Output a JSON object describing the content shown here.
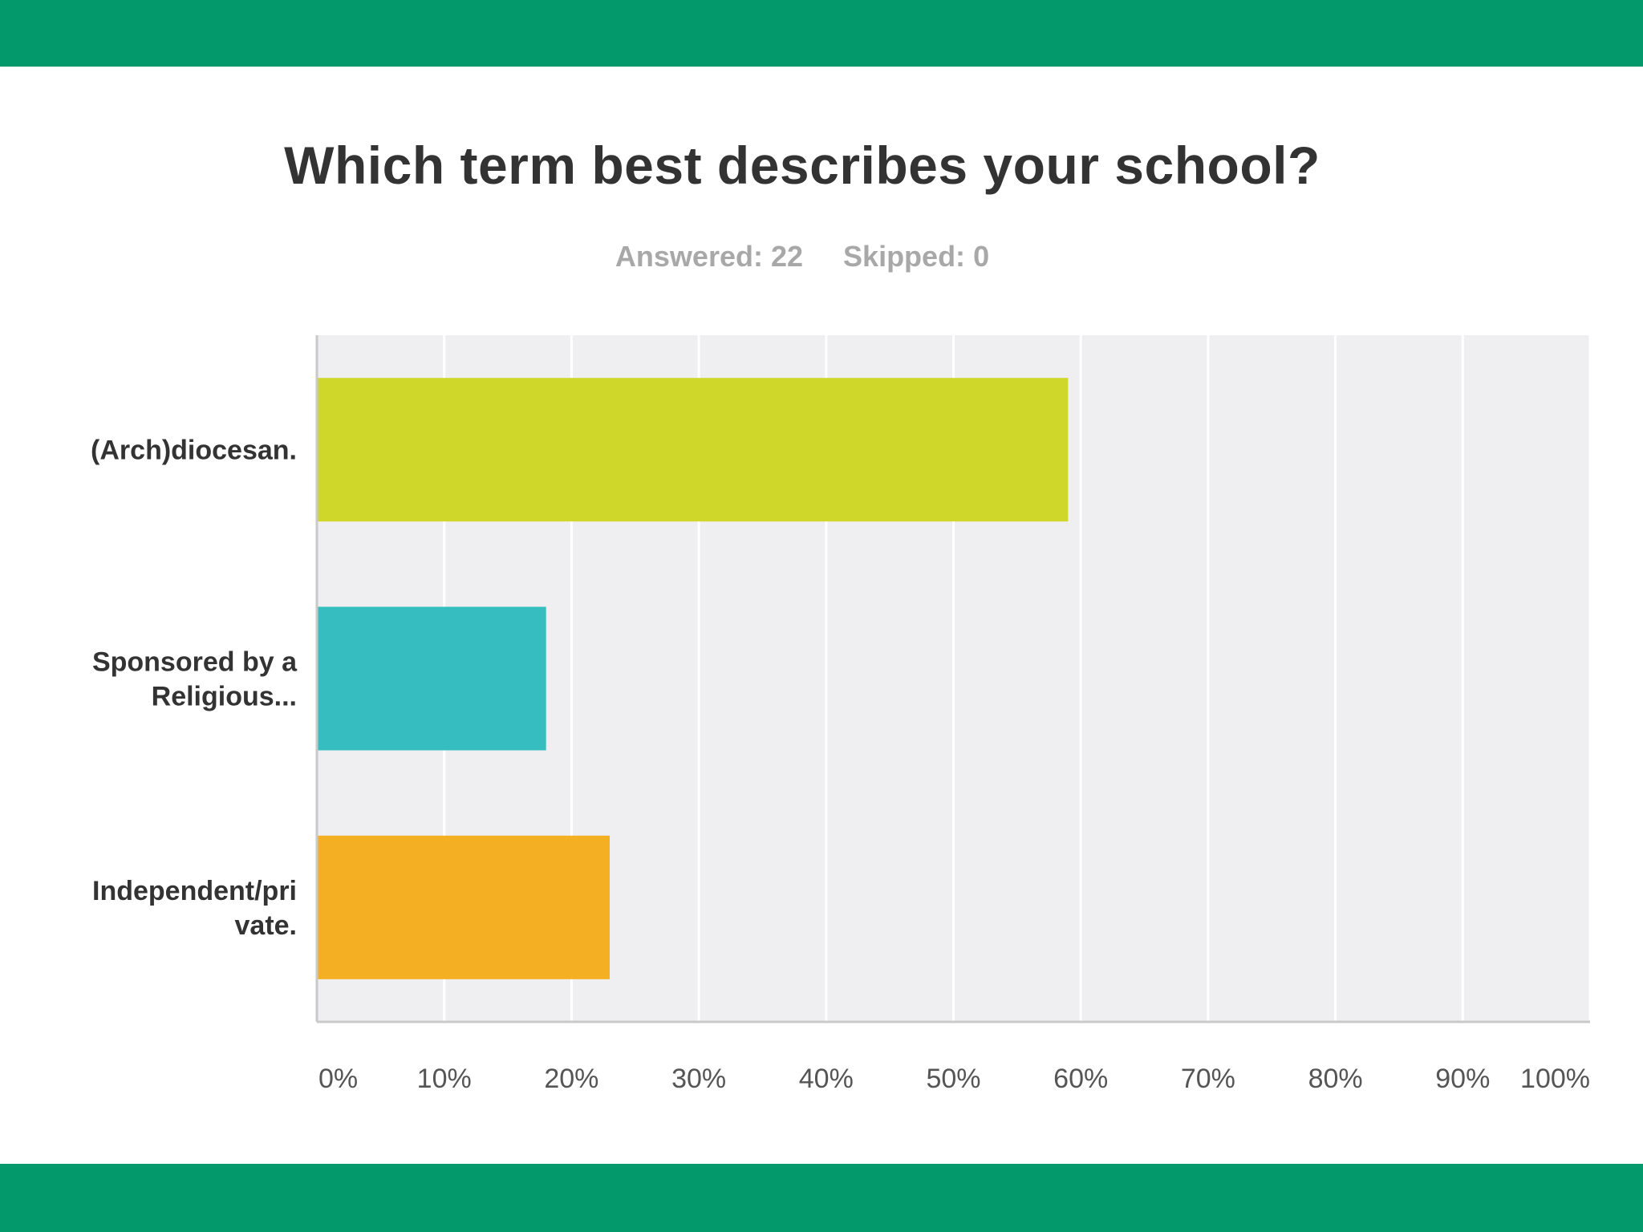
{
  "colors": {
    "band": "#03996b",
    "plot_background": "#efeff1",
    "gridline": "#ffffff",
    "axis": "#c9c9c9",
    "title": "#333333",
    "stats": "#a8a8a8",
    "category_label": "#333333",
    "tick_label": "#555555"
  },
  "header": {
    "answered_label": "Answered:",
    "answered_value": "22",
    "skipped_label": "Skipped:",
    "skipped_value": "0"
  },
  "chart_data": {
    "type": "bar",
    "orientation": "horizontal",
    "title": "Which term best describes your school?",
    "categories": [
      [
        "(Arch)diocesan."
      ],
      [
        "Sponsored by a",
        "Religious..."
      ],
      [
        "Independent/pri",
        "vate."
      ]
    ],
    "values": [
      59,
      18,
      23
    ],
    "value_unit": "%",
    "bar_colors": [
      "#cfd72b",
      "#35bdc0",
      "#f4af22"
    ],
    "xlim": [
      0,
      100
    ],
    "x_ticks": [
      "0%",
      "10%",
      "20%",
      "30%",
      "40%",
      "50%",
      "60%",
      "70%",
      "80%",
      "90%",
      "100%"
    ],
    "xlabel": "",
    "ylabel": "",
    "grid": true,
    "legend": "none"
  }
}
